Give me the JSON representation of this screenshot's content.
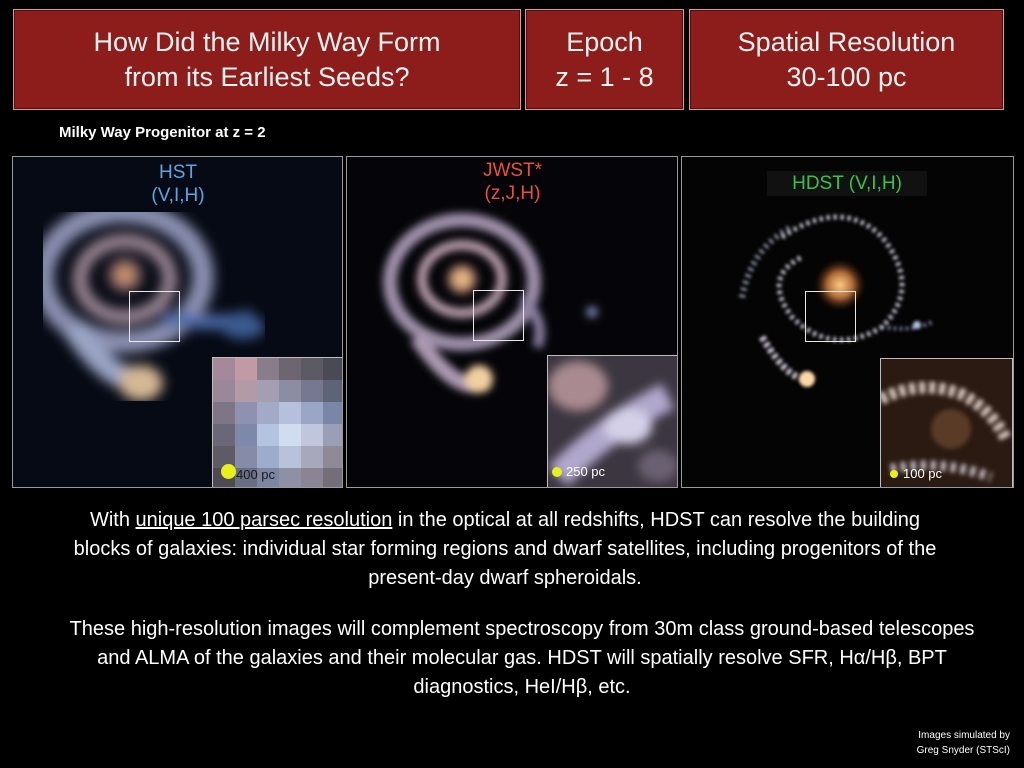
{
  "header": {
    "question_line1": "How Did the Milky Way Form",
    "question_line2": "from its Earliest Seeds?",
    "epoch_line1": "Epoch",
    "epoch_line2": "z = 1 - 8",
    "resolution_line1": "Spatial Resolution",
    "resolution_line2": "30-100 pc"
  },
  "subtitle": "Milky Way Progenitor at z = 2",
  "panels": [
    {
      "title": "HST",
      "bands": "(V,I,H)",
      "scale": "400 pc",
      "title_color": "#5aa7e6"
    },
    {
      "title": "JWST*",
      "bands": "(z,J,H)",
      "scale": "250 pc",
      "title_color": "#e8503a"
    },
    {
      "title": "HDST (V,I,H)",
      "scale": "100 pc",
      "title_color": "#35c44a"
    }
  ],
  "paragraph1": {
    "before": "With ",
    "underlined": "unique 100 parsec resolution",
    "after": " in the optical at all redshifts, HDST can resolve the building blocks of galaxies: individual star forming regions and dwarf satellites, including progenitors of the present-day dwarf spheroidals."
  },
  "paragraph2": "These high-resolution images will complement spectroscopy from 30m class ground-based telescopes and ALMA of the galaxies and their molecular gas. HDST will spatially resolve SFR, Hα/Hβ, BPT diagnostics, HeI/Hβ, etc.",
  "credit_line1": "Images simulated by",
  "credit_line2": "Greg Snyder (STScI)"
}
